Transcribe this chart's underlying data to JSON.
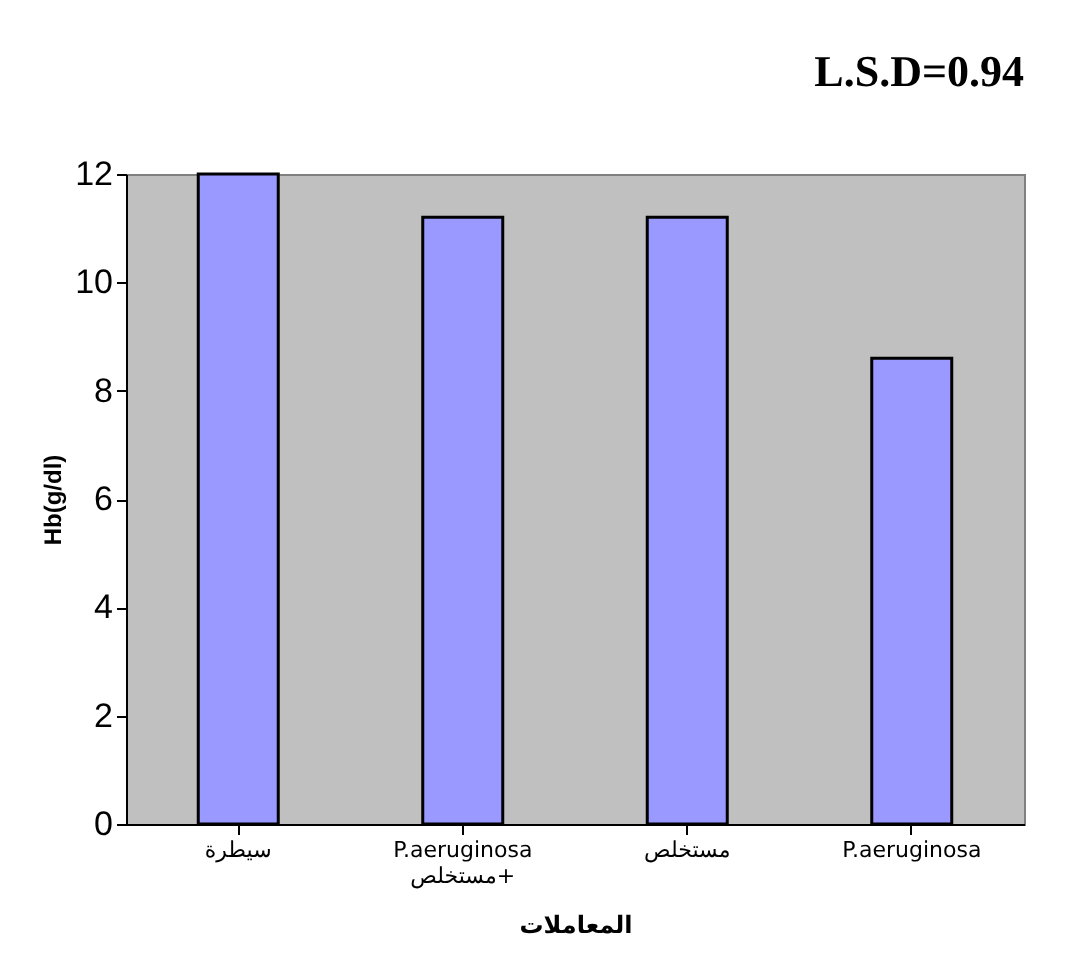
{
  "chart_data": {
    "type": "bar",
    "title": "L.S.D=0.94",
    "xlabel": "المعاملات",
    "ylabel": "Hb(g/dl)",
    "categories": [
      "سيطرة",
      "P.aeruginosa مستخلص+",
      "مستخلص",
      "P.aeruginosa"
    ],
    "values": [
      12.0,
      11.2,
      11.2,
      8.6
    ],
    "color": "#9999ff",
    "ylim": [
      0,
      12
    ],
    "yticks": [
      0,
      2,
      4,
      6,
      8,
      10,
      12
    ],
    "grid": false
  }
}
